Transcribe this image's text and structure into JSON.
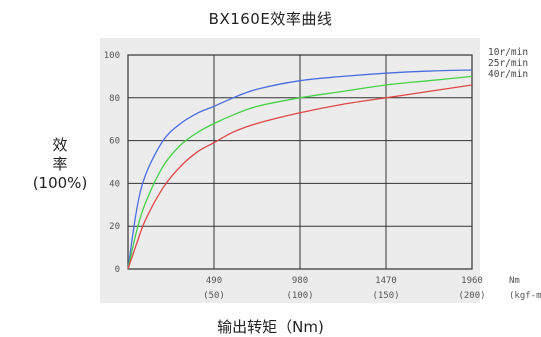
{
  "chart_data": {
    "type": "line",
    "title": "BX160E效率曲线",
    "ylabel_line1": "效",
    "ylabel_line2": "率",
    "ylabel_line3": "(100%)",
    "xlabel": "输出转矩（Nm)",
    "x_unit_1": "Nm",
    "x_unit_2": "(kgf-m)",
    "xlim": [
      0,
      1960
    ],
    "ylim": [
      0,
      100
    ],
    "x_ticks": [
      {
        "value": 490,
        "label": "490",
        "sublabel": "(50)"
      },
      {
        "value": 980,
        "label": "980",
        "sublabel": "(100)"
      },
      {
        "value": 1470,
        "label": "1470",
        "sublabel": "(150)"
      },
      {
        "value": 1960,
        "label": "1960",
        "sublabel": "(200)"
      }
    ],
    "y_ticks": [
      0,
      20,
      40,
      60,
      80,
      100
    ],
    "grid": true,
    "legend_position": "right",
    "series": [
      {
        "name": "10r/min",
        "color": "#4a6ee0",
        "x": [
          0,
          50,
          100,
          200,
          300,
          400,
          490,
          600,
          735,
          980,
          1225,
          1470,
          1715,
          1960
        ],
        "y": [
          0,
          28,
          44,
          60,
          68,
          73,
          76,
          80,
          84,
          88,
          90,
          91.5,
          92.5,
          93
        ]
      },
      {
        "name": "25r/min",
        "color": "#46d246",
        "x": [
          0,
          50,
          100,
          200,
          300,
          400,
          490,
          600,
          735,
          980,
          1225,
          1470,
          1715,
          1960
        ],
        "y": [
          0,
          18,
          31,
          48,
          58,
          64,
          68,
          72,
          76,
          80,
          83,
          86,
          88,
          90
        ]
      },
      {
        "name": "40r/min",
        "color": "#e04646",
        "x": [
          0,
          50,
          100,
          200,
          300,
          400,
          490,
          600,
          735,
          980,
          1225,
          1470,
          1715,
          1960
        ],
        "y": [
          0,
          12,
          23,
          38,
          48,
          55,
          59,
          64,
          68,
          73,
          77,
          80,
          83,
          86
        ]
      }
    ]
  }
}
